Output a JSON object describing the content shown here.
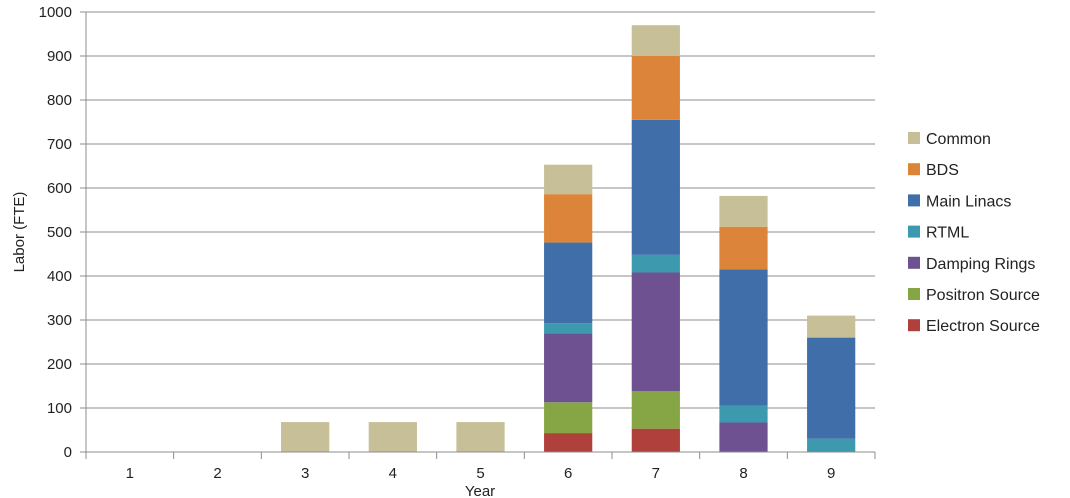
{
  "chart_data": {
    "type": "bar",
    "stacked": true,
    "title": "",
    "xlabel": "Year",
    "ylabel": "Labor (FTE)",
    "ylim": [
      0,
      1000
    ],
    "yticks": [
      0,
      100,
      200,
      300,
      400,
      500,
      600,
      700,
      800,
      900,
      1000
    ],
    "grid": true,
    "legend_position": "right",
    "categories": [
      "1",
      "2",
      "3",
      "4",
      "5",
      "6",
      "7",
      "8",
      "9"
    ],
    "series": [
      {
        "name": "Electron Source",
        "color": "#b0403c",
        "values": [
          0,
          0,
          0,
          0,
          0,
          43,
          53,
          0,
          0
        ]
      },
      {
        "name": "Positron Source",
        "color": "#86a544",
        "values": [
          0,
          0,
          0,
          0,
          0,
          70,
          85,
          0,
          0
        ]
      },
      {
        "name": "Damping Rings",
        "color": "#6d5190",
        "values": [
          0,
          0,
          0,
          0,
          0,
          157,
          270,
          67,
          0
        ]
      },
      {
        "name": "RTML",
        "color": "#3d99ae",
        "values": [
          0,
          0,
          0,
          0,
          0,
          23,
          40,
          38,
          30
        ]
      },
      {
        "name": "Main Linacs",
        "color": "#3f6ea8",
        "values": [
          0,
          0,
          0,
          0,
          0,
          183,
          307,
          310,
          230
        ]
      },
      {
        "name": "BDS",
        "color": "#dc8439",
        "values": [
          0,
          0,
          0,
          0,
          0,
          110,
          145,
          97,
          0
        ]
      },
      {
        "name": "Common",
        "color": "#c6bf97",
        "values": [
          0,
          0,
          68,
          68,
          68,
          67,
          70,
          70,
          50
        ]
      }
    ]
  }
}
